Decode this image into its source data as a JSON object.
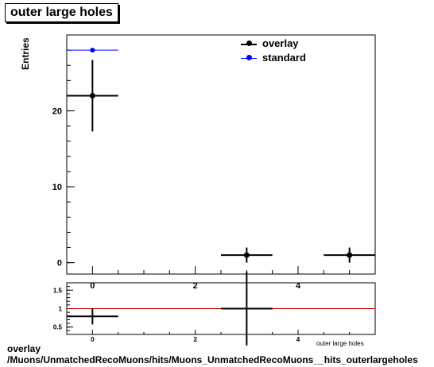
{
  "chart_data": [
    {
      "type": "scatter",
      "title": "outer large holes",
      "ylabel": "Entries",
      "xlim": [
        -0.5,
        5.5
      ],
      "ylim": [
        -1.5,
        30
      ],
      "x_ticks": [
        0,
        2,
        4
      ],
      "y_ticks": [
        0,
        10,
        20
      ],
      "legend_position": "top-right",
      "series": [
        {
          "name": "overlay",
          "color": "#000000",
          "points": [
            {
              "x": 0,
              "y": 22,
              "xerr": 0.5,
              "yerr": 4.7
            },
            {
              "x": 3,
              "y": 1,
              "xerr": 0.5,
              "yerr": 1
            },
            {
              "x": 5,
              "y": 1,
              "xerr": 0.5,
              "yerr": 1
            }
          ]
        },
        {
          "name": "standard",
          "color": "#0000ff",
          "points": [
            {
              "x": 0,
              "y": 28,
              "xerr": 0.5,
              "yerr": 0
            }
          ]
        }
      ]
    },
    {
      "type": "scatter",
      "xlabel": "outer large holes",
      "xlim": [
        -0.5,
        5.5
      ],
      "ylim": [
        0.3,
        1.7
      ],
      "x_ticks": [
        0,
        2,
        4
      ],
      "y_ticks": [
        0.5,
        1,
        1.5
      ],
      "reference_line": {
        "y": 1,
        "color": "#cc0000"
      },
      "points": [
        {
          "x": 0,
          "y": 0.79,
          "xerr": 0.5,
          "yerr": 0.22
        },
        {
          "x": 3,
          "y": 1,
          "xerr": 0.5,
          "yerr": 1.0
        }
      ]
    }
  ],
  "legend": {
    "overlay_label": "overlay",
    "standard_label": "standard"
  },
  "footer": {
    "line1": "overlay",
    "line2": "/Muons/UnmatchedRecoMuons/hits/Muons_UnmatchedRecoMuons__hits_outerlargeholes"
  }
}
